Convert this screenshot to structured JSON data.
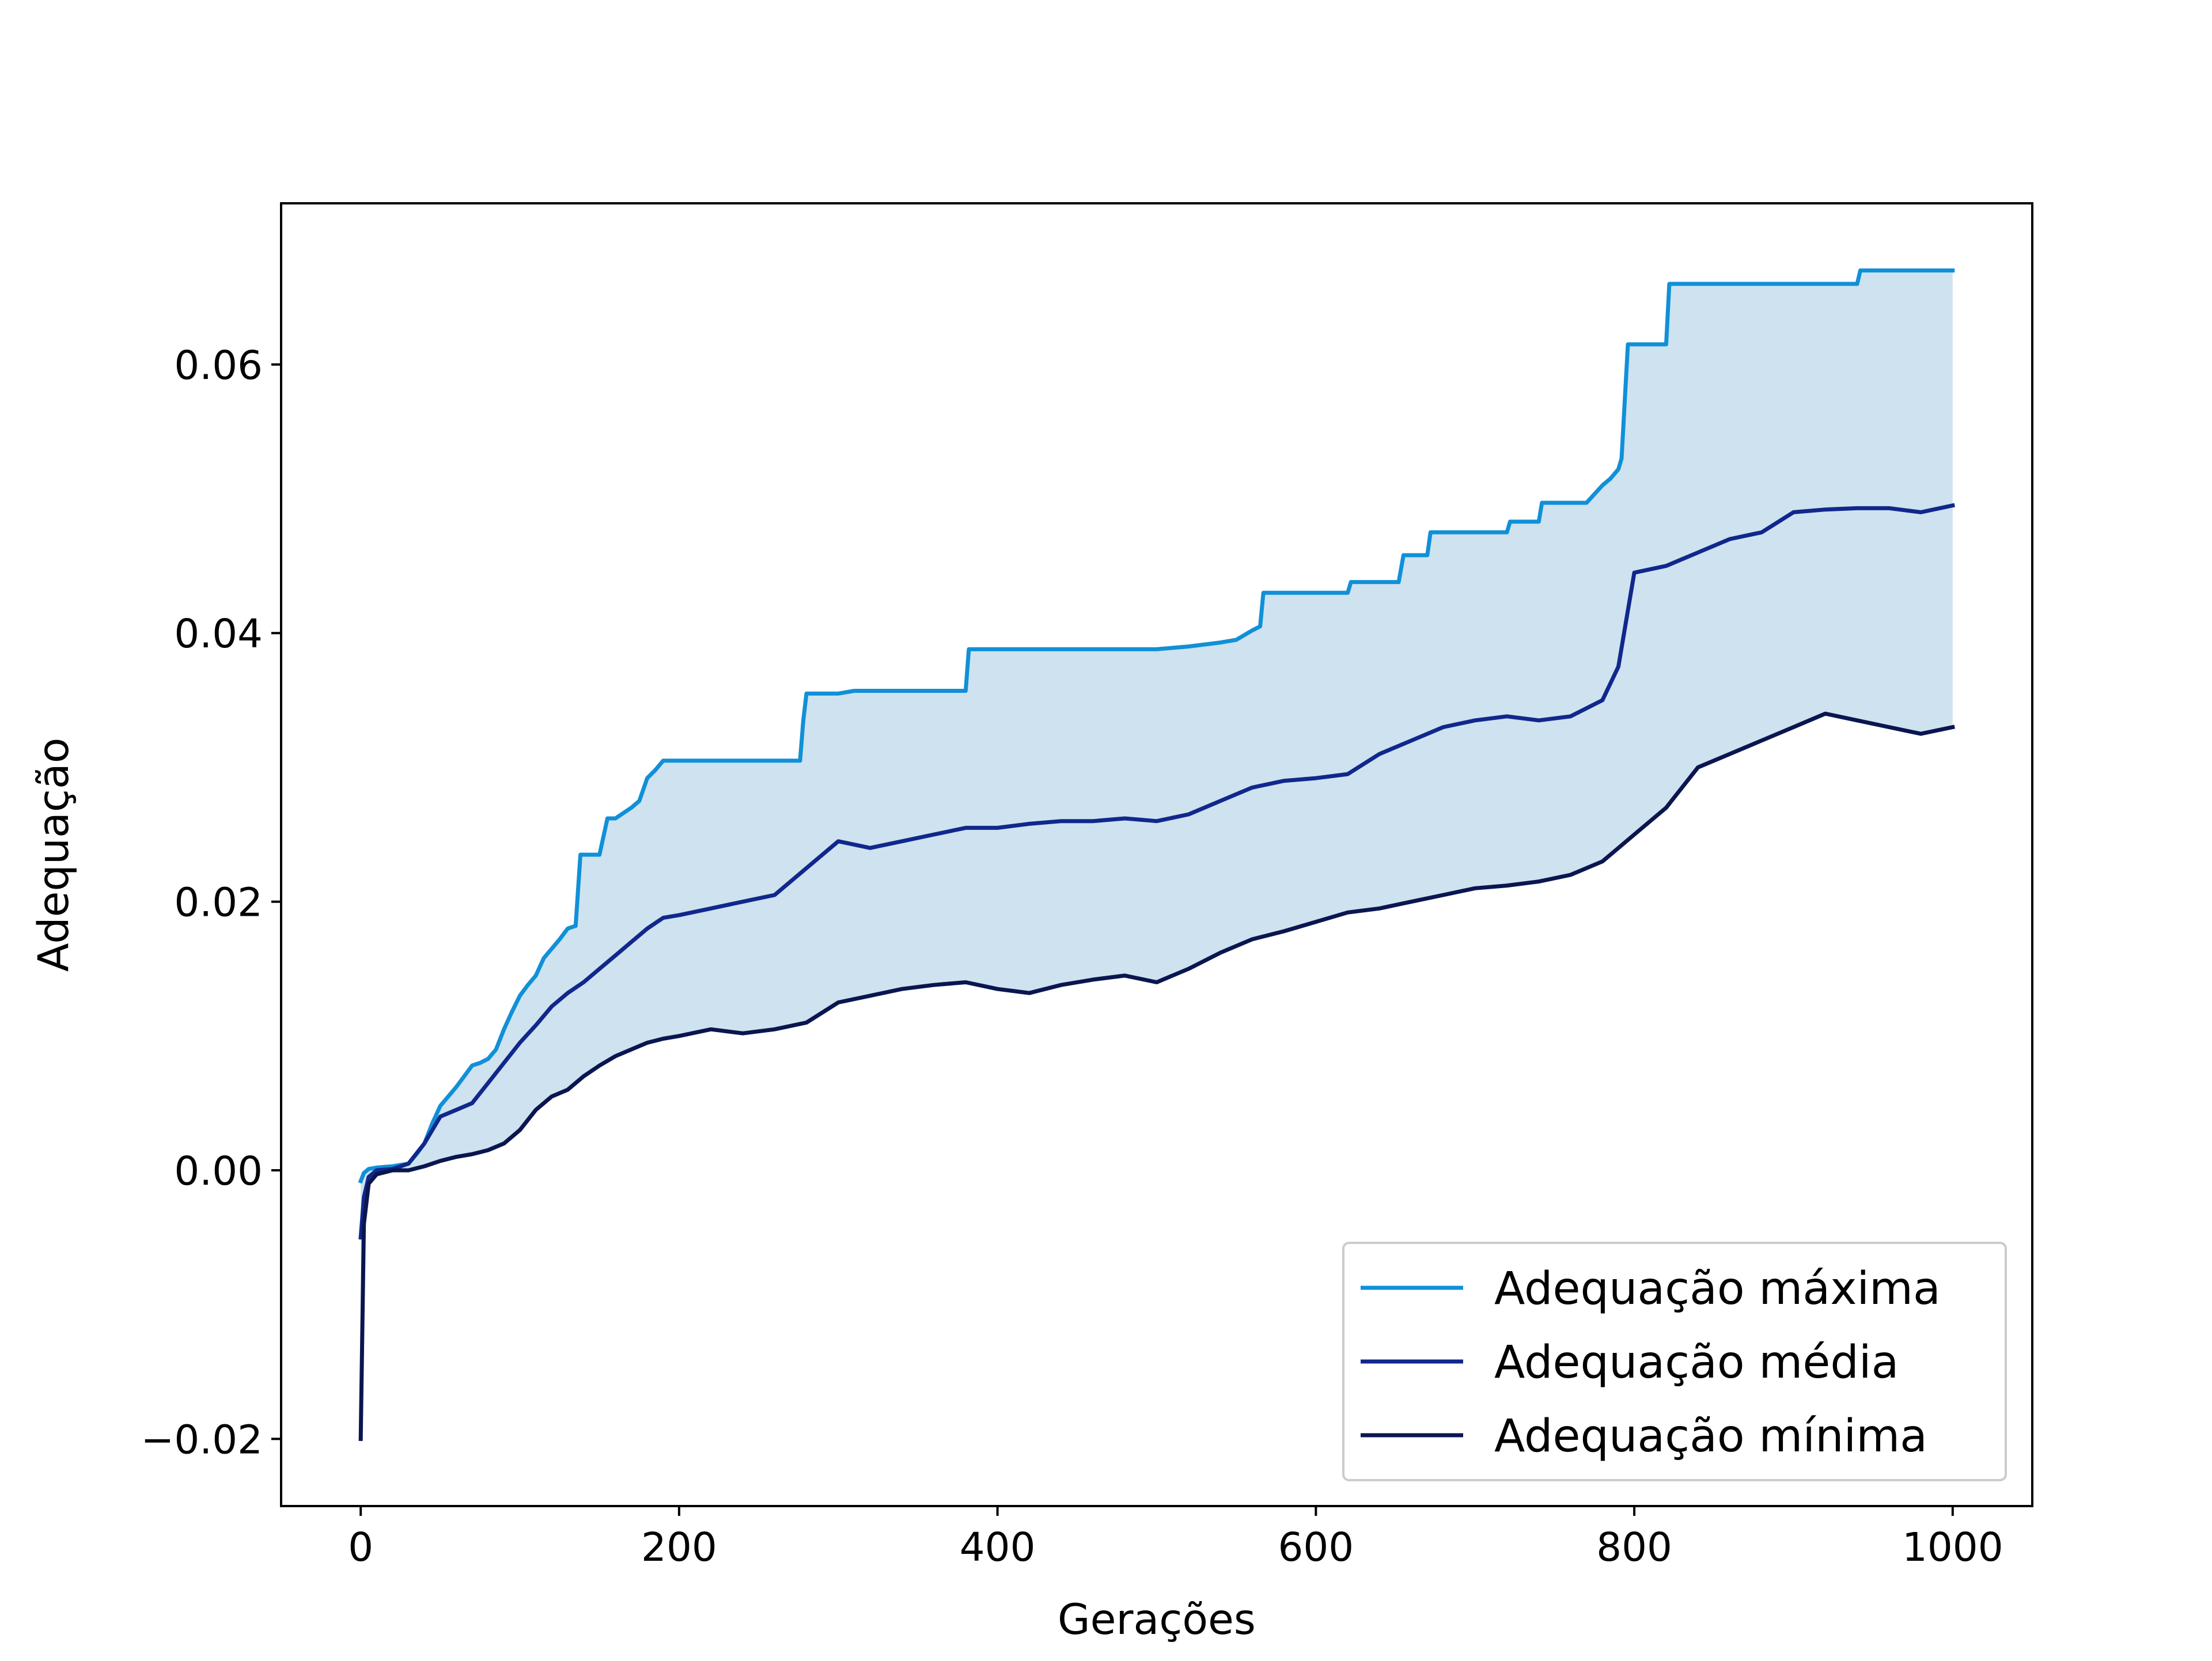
{
  "chart_data": {
    "type": "line",
    "title": "",
    "xlabel": "Gerações",
    "ylabel": "Adequação",
    "xlim": [
      -50,
      1050
    ],
    "ylim": [
      -0.025,
      0.072
    ],
    "xticks": [
      0,
      200,
      400,
      600,
      800,
      1000
    ],
    "xtick_labels": [
      "0",
      "200",
      "400",
      "600",
      "800",
      "1000"
    ],
    "yticks": [
      -0.02,
      0.0,
      0.02,
      0.04,
      0.06
    ],
    "ytick_labels": [
      "−0.02",
      "0.00",
      "0.02",
      "0.04",
      "0.06"
    ],
    "grid": false,
    "legend_position": "lower-right",
    "fill_between": {
      "upper": "Adequação máxima",
      "lower": "Adequação mínima",
      "color": "#cfe2ef"
    },
    "series": [
      {
        "name": "Adequação máxima",
        "color": "#1090d8",
        "x": [
          0,
          2,
          5,
          10,
          20,
          30,
          35,
          40,
          45,
          50,
          55,
          60,
          65,
          70,
          75,
          80,
          85,
          90,
          95,
          100,
          105,
          110,
          115,
          120,
          125,
          130,
          135,
          138,
          140,
          150,
          155,
          160,
          170,
          175,
          180,
          185,
          190,
          200,
          250,
          276,
          278,
          280,
          300,
          310,
          350,
          380,
          382,
          400,
          450,
          500,
          510,
          520,
          540,
          550,
          560,
          565,
          567,
          570,
          600,
          620,
          622,
          640,
          652,
          655,
          670,
          672,
          700,
          720,
          722,
          740,
          742,
          760,
          770,
          780,
          785,
          790,
          792,
          796,
          800,
          820,
          822,
          850,
          900,
          940,
          942,
          960,
          1000
        ],
        "y": [
          -0.0008,
          -0.0002,
          0.0001,
          0.0002,
          0.0003,
          0.0005,
          0.0012,
          0.002,
          0.0035,
          0.0048,
          0.0055,
          0.0062,
          0.007,
          0.0078,
          0.008,
          0.0083,
          0.009,
          0.0105,
          0.0118,
          0.013,
          0.0138,
          0.0145,
          0.0158,
          0.0165,
          0.0172,
          0.018,
          0.0182,
          0.0235,
          0.0235,
          0.0235,
          0.0262,
          0.0262,
          0.027,
          0.0275,
          0.0292,
          0.0298,
          0.0305,
          0.0305,
          0.0305,
          0.0305,
          0.0335,
          0.0355,
          0.0355,
          0.0357,
          0.0357,
          0.0357,
          0.0388,
          0.0388,
          0.0388,
          0.0388,
          0.0389,
          0.039,
          0.0393,
          0.0395,
          0.0402,
          0.0405,
          0.043,
          0.043,
          0.043,
          0.043,
          0.0438,
          0.0438,
          0.0438,
          0.0458,
          0.0458,
          0.0475,
          0.0475,
          0.0475,
          0.0483,
          0.0483,
          0.0497,
          0.0497,
          0.0497,
          0.051,
          0.0515,
          0.0522,
          0.053,
          0.0615,
          0.0615,
          0.0615,
          0.066,
          0.066,
          0.066,
          0.066,
          0.067,
          0.067,
          0.067
        ]
      },
      {
        "name": "Adequação média",
        "color": "#10288c",
        "x": [
          0,
          2,
          5,
          10,
          20,
          30,
          40,
          50,
          60,
          70,
          80,
          90,
          100,
          110,
          120,
          130,
          140,
          150,
          160,
          170,
          180,
          190,
          200,
          220,
          240,
          260,
          280,
          300,
          320,
          340,
          360,
          380,
          400,
          420,
          440,
          460,
          480,
          500,
          520,
          540,
          560,
          580,
          600,
          620,
          640,
          660,
          680,
          700,
          720,
          740,
          760,
          780,
          790,
          800,
          820,
          840,
          860,
          880,
          900,
          920,
          940,
          960,
          980,
          1000
        ],
        "y": [
          -0.005,
          -0.002,
          -0.0005,
          0.0,
          0.0001,
          0.0005,
          0.002,
          0.004,
          0.0045,
          0.005,
          0.0065,
          0.008,
          0.0095,
          0.0108,
          0.0122,
          0.0132,
          0.014,
          0.015,
          0.016,
          0.017,
          0.018,
          0.0188,
          0.019,
          0.0195,
          0.02,
          0.0205,
          0.0225,
          0.0245,
          0.024,
          0.0245,
          0.025,
          0.0255,
          0.0255,
          0.0258,
          0.026,
          0.026,
          0.0262,
          0.026,
          0.0265,
          0.0275,
          0.0285,
          0.029,
          0.0292,
          0.0295,
          0.031,
          0.032,
          0.033,
          0.0335,
          0.0338,
          0.0335,
          0.0338,
          0.035,
          0.0375,
          0.0445,
          0.045,
          0.046,
          0.047,
          0.0475,
          0.049,
          0.0492,
          0.0493,
          0.0493,
          0.049,
          0.0495
        ]
      },
      {
        "name": "Adequação mínima",
        "color": "#0a1650",
        "x": [
          0,
          2,
          5,
          10,
          20,
          30,
          40,
          50,
          60,
          70,
          80,
          90,
          100,
          110,
          120,
          130,
          140,
          150,
          160,
          170,
          180,
          190,
          200,
          220,
          240,
          260,
          280,
          300,
          320,
          340,
          360,
          380,
          400,
          420,
          440,
          460,
          480,
          500,
          520,
          540,
          560,
          580,
          600,
          620,
          640,
          660,
          680,
          700,
          720,
          740,
          760,
          780,
          800,
          820,
          840,
          860,
          880,
          900,
          920,
          940,
          960,
          980,
          1000
        ],
        "y": [
          -0.02,
          -0.004,
          -0.001,
          -0.0003,
          0.0,
          0.0,
          0.0003,
          0.0007,
          0.001,
          0.0012,
          0.0015,
          0.002,
          0.003,
          0.0045,
          0.0055,
          0.006,
          0.007,
          0.0078,
          0.0085,
          0.009,
          0.0095,
          0.0098,
          0.01,
          0.0105,
          0.0102,
          0.0105,
          0.011,
          0.0125,
          0.013,
          0.0135,
          0.0138,
          0.014,
          0.0135,
          0.0132,
          0.0138,
          0.0142,
          0.0145,
          0.014,
          0.015,
          0.0162,
          0.0172,
          0.0178,
          0.0185,
          0.0192,
          0.0195,
          0.02,
          0.0205,
          0.021,
          0.0212,
          0.0215,
          0.022,
          0.023,
          0.025,
          0.027,
          0.03,
          0.031,
          0.032,
          0.033,
          0.034,
          0.0335,
          0.033,
          0.0325,
          0.033
        ]
      }
    ]
  }
}
